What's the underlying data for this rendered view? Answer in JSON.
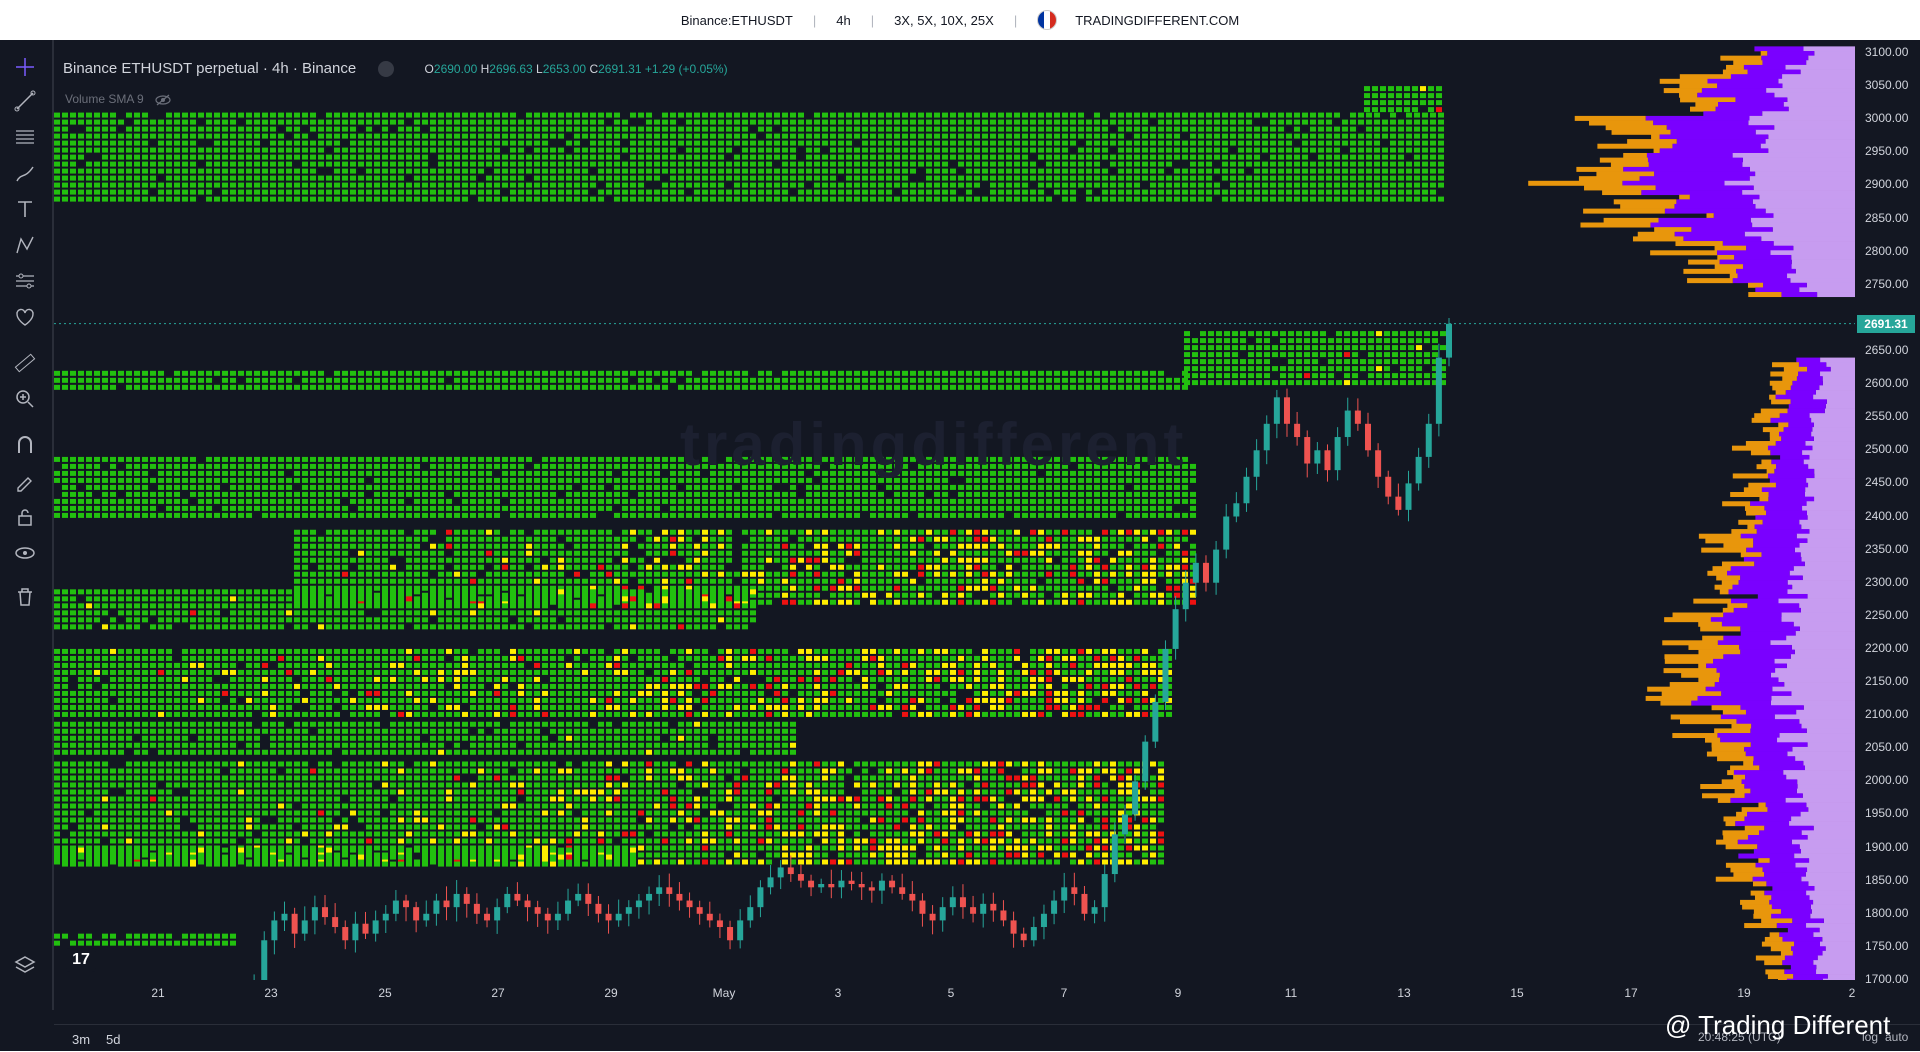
{
  "topbar": {
    "symbol": "Binance:ETHUSDT",
    "interval": "4h",
    "leverage": "3X, 5X, 10X, 25X",
    "site": "TRADINGDIFFERENT.COM"
  },
  "legend": {
    "title": "Binance ETHUSDT perpetual · 4h · Binance",
    "o_label": "O",
    "o_value": "2690.00",
    "h_label": "H",
    "h_value": "2696.63",
    "l_label": "L",
    "l_value": "2653.00",
    "c_label": "C",
    "c_value": "2691.31",
    "change": "+1.29 (+0.05%)",
    "volume_indicator": "Volume SMA 9"
  },
  "price_axis": {
    "labels": [
      "3100.00",
      "3050.00",
      "3000.00",
      "2950.00",
      "2900.00",
      "2850.00",
      "2800.00",
      "2750.00",
      "2650.00",
      "2600.00",
      "2550.00",
      "2500.00",
      "2450.00",
      "2400.00",
      "2350.00",
      "2300.00",
      "2250.00",
      "2200.00",
      "2150.00",
      "2100.00",
      "2050.00",
      "2000.00",
      "1950.00",
      "1900.00",
      "1850.00",
      "1800.00",
      "1750.00",
      "1700.00"
    ],
    "last_price": "2691.31"
  },
  "time_axis": {
    "labels": [
      "21",
      "23",
      "25",
      "27",
      "29",
      "May",
      "3",
      "5",
      "7",
      "9",
      "11",
      "13",
      "15",
      "17",
      "19",
      "2"
    ]
  },
  "bottom": {
    "range_3m": "3m",
    "range_5d": "5d",
    "clock": "20:48:25 (UTC)",
    "log": "log",
    "auto": "auto",
    "watermark": "@ Trading Different"
  },
  "tv_logo": "17",
  "bg_watermark": "tradingdifferent",
  "colors": {
    "bg": "#131722",
    "up": "#26a69a",
    "down": "#ef5350",
    "heat_green": "#22c00f",
    "heat_yellow": "#ffee00",
    "heat_red": "#ee1111",
    "profile_purple": "#7a00ff",
    "profile_lilac": "#c79cf0",
    "profile_orange": "#e8960c"
  },
  "chart_data": {
    "type": "candlestick",
    "title": "Binance ETHUSDT perpetual · 4h · Binance",
    "y_range": [
      1660,
      3130
    ],
    "x_labels": [
      "21",
      "23",
      "25",
      "27",
      "29",
      "May",
      "3",
      "5",
      "7",
      "9",
      "11",
      "13",
      "15",
      "17",
      "19",
      "2"
    ],
    "candles_close": [
      1665,
      1700,
      1760,
      1790,
      1800,
      1770,
      1790,
      1810,
      1795,
      1780,
      1760,
      1785,
      1770,
      1790,
      1800,
      1820,
      1810,
      1790,
      1800,
      1820,
      1810,
      1830,
      1815,
      1800,
      1790,
      1810,
      1830,
      1820,
      1810,
      1800,
      1790,
      1800,
      1820,
      1830,
      1815,
      1800,
      1790,
      1800,
      1810,
      1820,
      1830,
      1840,
      1830,
      1820,
      1810,
      1800,
      1790,
      1780,
      1760,
      1790,
      1810,
      1840,
      1855,
      1870,
      1860,
      1850,
      1840,
      1845,
      1840,
      1850,
      1845,
      1840,
      1835,
      1850,
      1840,
      1830,
      1820,
      1800,
      1790,
      1810,
      1825,
      1810,
      1800,
      1815,
      1805,
      1790,
      1770,
      1760,
      1780,
      1800,
      1820,
      1840,
      1830,
      1800,
      1810,
      1860,
      1920,
      1950,
      2000,
      2060,
      2120,
      2200,
      2260,
      2300,
      2330,
      2300,
      2350,
      2400,
      2420,
      2460,
      2500,
      2540,
      2580,
      2540,
      2520,
      2480,
      2500,
      2470,
      2520,
      2560,
      2540,
      2500,
      2460,
      2430,
      2410,
      2450,
      2490,
      2540,
      2640,
      2691
    ]
  }
}
